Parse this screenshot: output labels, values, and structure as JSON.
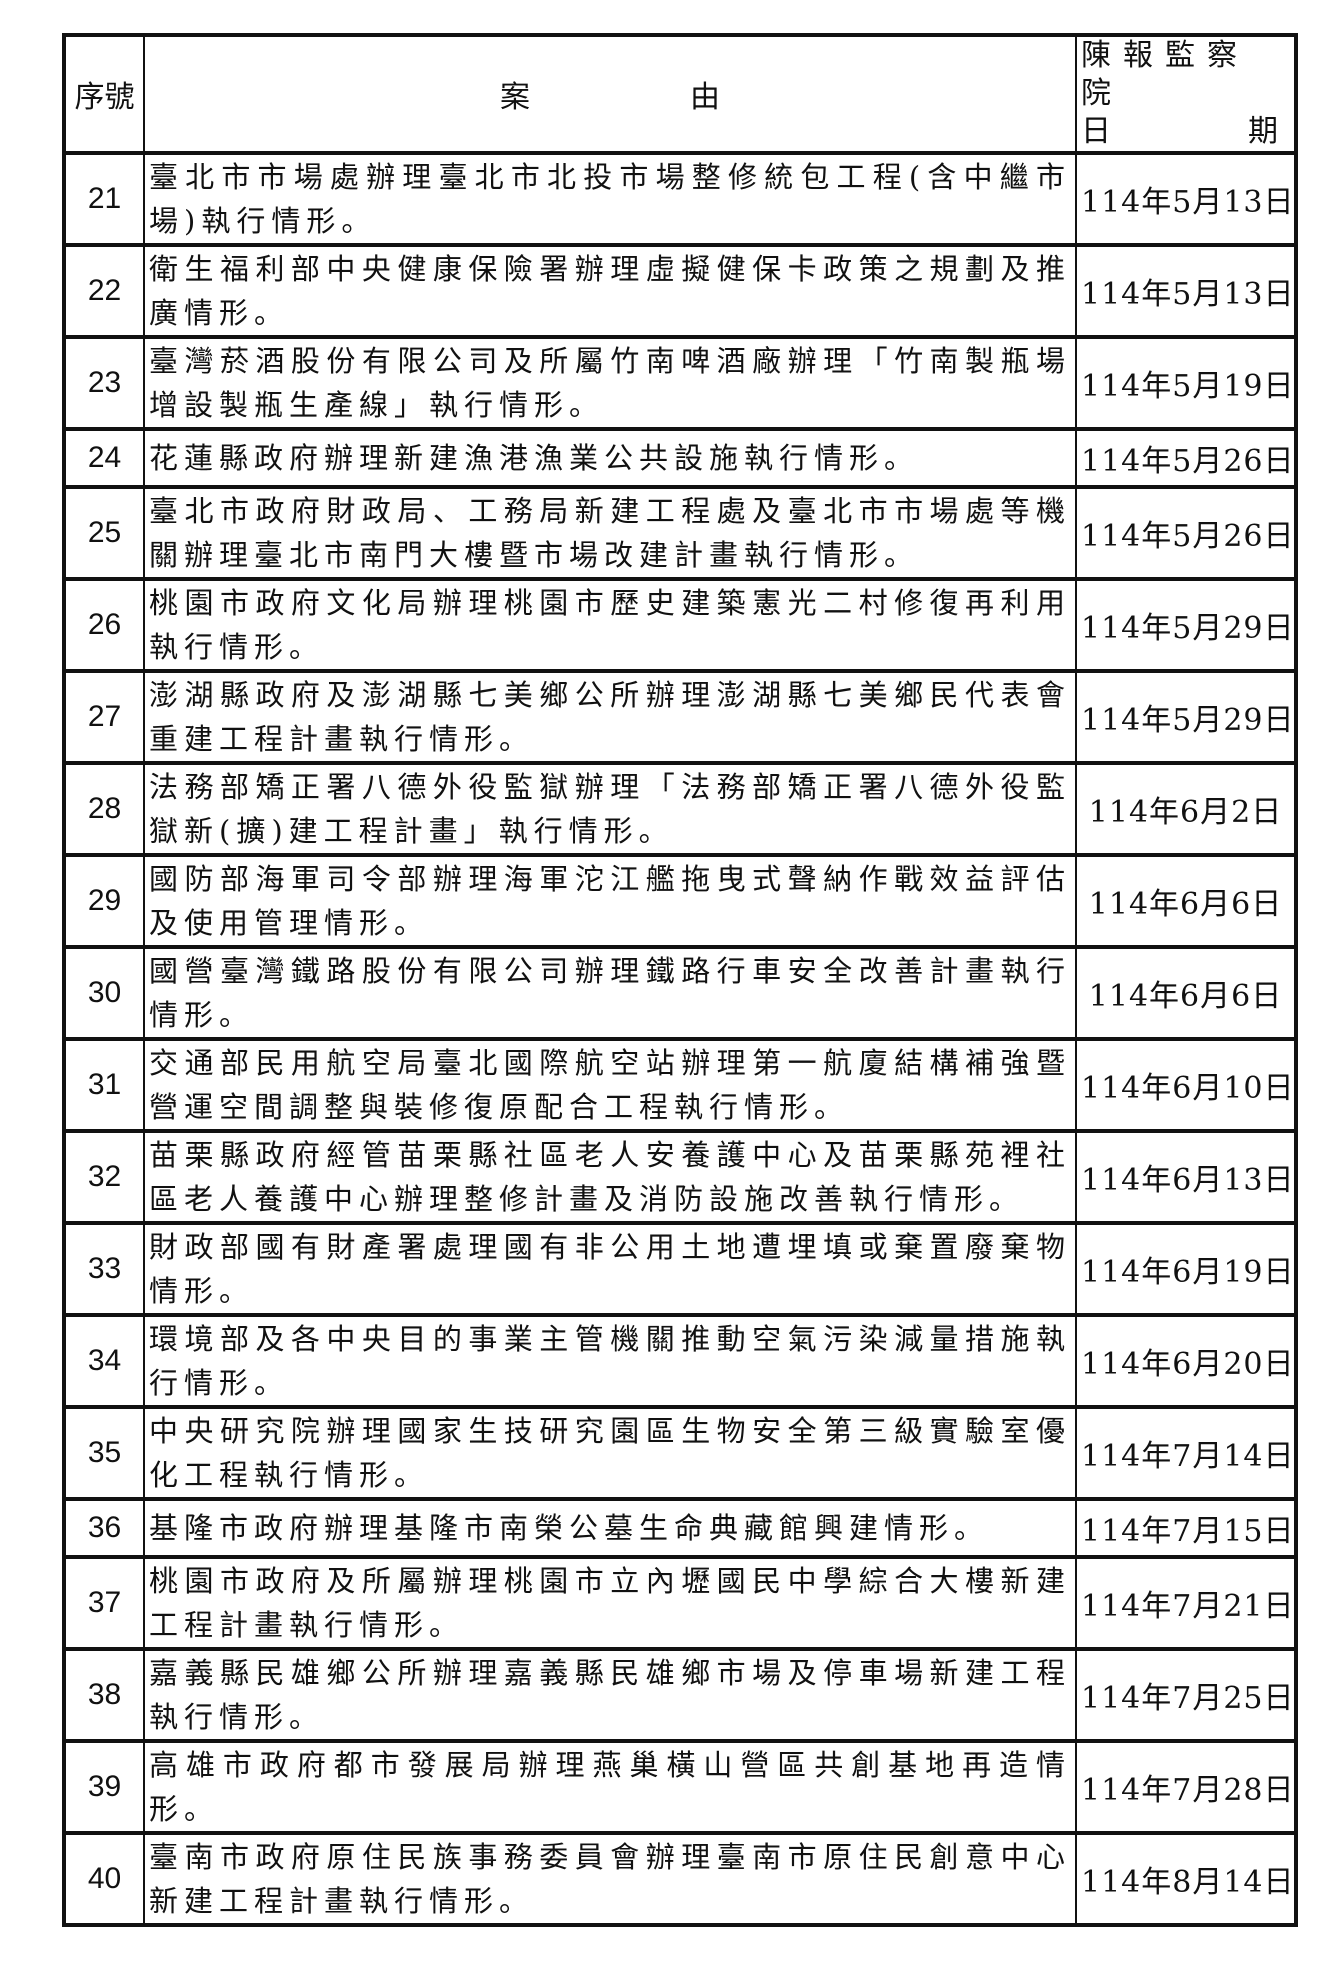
{
  "header": {
    "no": "序號",
    "case": [
      "案",
      "由"
    ],
    "date_line1": "陳報監察院",
    "date_line2": [
      "日",
      "期"
    ]
  },
  "rows": [
    {
      "no": "21",
      "case": "臺北市市場處辦理臺北市北投市場整修統包工程(含中繼市場)執行情形。",
      "date": "114年5月13日"
    },
    {
      "no": "22",
      "case": "衛生福利部中央健康保險署辦理虛擬健保卡政策之規劃及推廣情形。",
      "date": "114年5月13日"
    },
    {
      "no": "23",
      "case": "臺灣菸酒股份有限公司及所屬竹南啤酒廠辦理「竹南製瓶場增設製瓶生產線」執行情形。",
      "date": "114年5月19日"
    },
    {
      "no": "24",
      "case": "花蓮縣政府辦理新建漁港漁業公共設施執行情形。",
      "date": "114年5月26日"
    },
    {
      "no": "25",
      "case": "臺北市政府財政局、工務局新建工程處及臺北市市場處等機關辦理臺北市南門大樓暨市場改建計畫執行情形。",
      "date": "114年5月26日"
    },
    {
      "no": "26",
      "case": "桃園市政府文化局辦理桃園市歷史建築憲光二村修復再利用執行情形。",
      "date": "114年5月29日"
    },
    {
      "no": "27",
      "case": "澎湖縣政府及澎湖縣七美鄉公所辦理澎湖縣七美鄉民代表會重建工程計畫執行情形。",
      "date": "114年5月29日"
    },
    {
      "no": "28",
      "case": "法務部矯正署八德外役監獄辦理「法務部矯正署八德外役監獄新(擴)建工程計畫」執行情形。",
      "date": "114年6月2日"
    },
    {
      "no": "29",
      "case": "國防部海軍司令部辦理海軍沱江艦拖曳式聲納作戰效益評估及使用管理情形。",
      "date": "114年6月6日"
    },
    {
      "no": "30",
      "case": "國營臺灣鐵路股份有限公司辦理鐵路行車安全改善計畫執行情形。",
      "date": "114年6月6日"
    },
    {
      "no": "31",
      "case": "交通部民用航空局臺北國際航空站辦理第一航廈結構補強暨營運空間調整與裝修復原配合工程執行情形。",
      "date": "114年6月10日"
    },
    {
      "no": "32",
      "case": "苗栗縣政府經管苗栗縣社區老人安養護中心及苗栗縣苑裡社區老人養護中心辦理整修計畫及消防設施改善執行情形。",
      "date": "114年6月13日"
    },
    {
      "no": "33",
      "case": "財政部國有財產署處理國有非公用土地遭埋填或棄置廢棄物情形。",
      "date": "114年6月19日"
    },
    {
      "no": "34",
      "case": "環境部及各中央目的事業主管機關推動空氣污染減量措施執行情形。",
      "date": "114年6月20日"
    },
    {
      "no": "35",
      "case": "中央研究院辦理國家生技研究園區生物安全第三級實驗室優化工程執行情形。",
      "date": "114年7月14日"
    },
    {
      "no": "36",
      "case": "基隆市政府辦理基隆市南榮公墓生命典藏館興建情形。",
      "date": "114年7月15日"
    },
    {
      "no": "37",
      "case": "桃園市政府及所屬辦理桃園市立內壢國民中學綜合大樓新建工程計畫執行情形。",
      "date": "114年7月21日"
    },
    {
      "no": "38",
      "case": "嘉義縣民雄鄉公所辦理嘉義縣民雄鄉市場及停車場新建工程執行情形。",
      "date": "114年7月25日"
    },
    {
      "no": "39",
      "case": "高雄市政府都市發展局辦理燕巢橫山營區共創基地再造情形。",
      "date": "114年7月28日"
    },
    {
      "no": "40",
      "case": "臺南市政府原住民族事務委員會辦理臺南市原住民創意中心新建工程計畫執行情形。",
      "date": "114年8月14日"
    }
  ]
}
